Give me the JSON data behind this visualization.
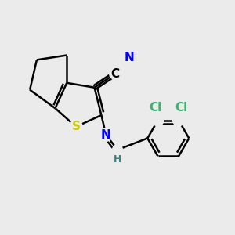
{
  "bg_color": "#ebebeb",
  "atom_colors": {
    "C": "#000000",
    "N": "#0000ff",
    "S": "#cccc00",
    "Cl": "#3cb371",
    "H": "#408080"
  },
  "bond_color": "#000000",
  "bond_width": 1.8,
  "dbo": 0.12
}
